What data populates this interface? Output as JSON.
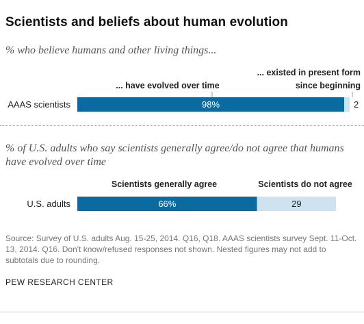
{
  "title": "Scientists and beliefs about human evolution",
  "source": "Source: Survey of U.S. adults Aug. 15-25, 2014. Q16, Q18. AAAS scientists survey Sept. 11-Oct. 13, 2014. Q16. Don't know/refused responses not shown. Nested figures may not add to subtotals due to rounding.",
  "credit": "PEW RESEARCH CENTER",
  "colors": {
    "dark": "#0b6aa0",
    "light": "#cfe2ef"
  },
  "chart_data": [
    {
      "type": "bar",
      "subtitle": "% who believe humans and other living things...",
      "categories": [
        "AAAS scientists"
      ],
      "series": [
        {
          "name": "... have evolved over time",
          "values": [
            98
          ]
        },
        {
          "name": "... existed in present form since beginning",
          "values": [
            2
          ]
        }
      ],
      "value_labels": [
        "98%",
        "2"
      ],
      "xlim": [
        0,
        100
      ]
    },
    {
      "type": "bar",
      "subtitle": "% of U.S. adults who say scientists generally agree/do not agree that humans have evolved over time",
      "categories": [
        "U.S. adults"
      ],
      "series": [
        {
          "name": "Scientists generally agree",
          "values": [
            66
          ]
        },
        {
          "name": "Scientists do not agree",
          "values": [
            29
          ]
        }
      ],
      "value_labels": [
        "66%",
        "29"
      ],
      "xlim": [
        0,
        100
      ]
    }
  ]
}
